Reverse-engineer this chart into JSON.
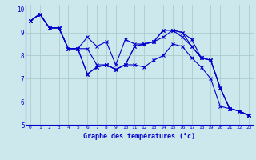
{
  "xlabel": "Graphe des températures (°c)",
  "background_color": "#cce8ec",
  "grid_color": "#aacccc",
  "line_color": "#0000cc",
  "xlim": [
    -0.5,
    23.5
  ],
  "ylim": [
    5,
    10.2
  ],
  "yticks": [
    5,
    6,
    7,
    8,
    9,
    10
  ],
  "xticks": [
    0,
    1,
    2,
    3,
    4,
    5,
    6,
    7,
    8,
    9,
    10,
    11,
    12,
    13,
    14,
    15,
    16,
    17,
    18,
    19,
    20,
    21,
    22,
    23
  ],
  "series": [
    [
      9.5,
      9.8,
      9.2,
      9.2,
      8.3,
      8.3,
      8.8,
      8.4,
      8.6,
      7.6,
      8.7,
      8.5,
      8.5,
      8.6,
      9.1,
      9.1,
      9.0,
      8.7,
      7.9,
      7.8,
      6.6,
      5.7,
      5.6,
      5.4
    ],
    [
      9.5,
      9.8,
      9.2,
      9.2,
      8.3,
      8.3,
      8.3,
      7.6,
      7.6,
      7.4,
      7.6,
      8.4,
      8.5,
      8.6,
      9.1,
      9.1,
      9.0,
      8.4,
      7.9,
      7.8,
      6.6,
      5.7,
      5.6,
      5.4
    ],
    [
      9.5,
      9.8,
      9.2,
      9.2,
      8.3,
      8.3,
      7.2,
      7.5,
      7.6,
      7.4,
      7.6,
      8.4,
      8.5,
      8.6,
      8.8,
      9.1,
      8.8,
      8.4,
      7.9,
      7.8,
      6.6,
      5.7,
      5.6,
      5.4
    ],
    [
      9.5,
      9.8,
      9.2,
      9.2,
      8.3,
      8.3,
      7.2,
      7.5,
      7.6,
      7.4,
      7.6,
      7.6,
      7.5,
      7.8,
      8.0,
      8.5,
      8.4,
      7.9,
      7.5,
      7.0,
      5.8,
      5.7,
      5.6,
      5.4
    ]
  ]
}
